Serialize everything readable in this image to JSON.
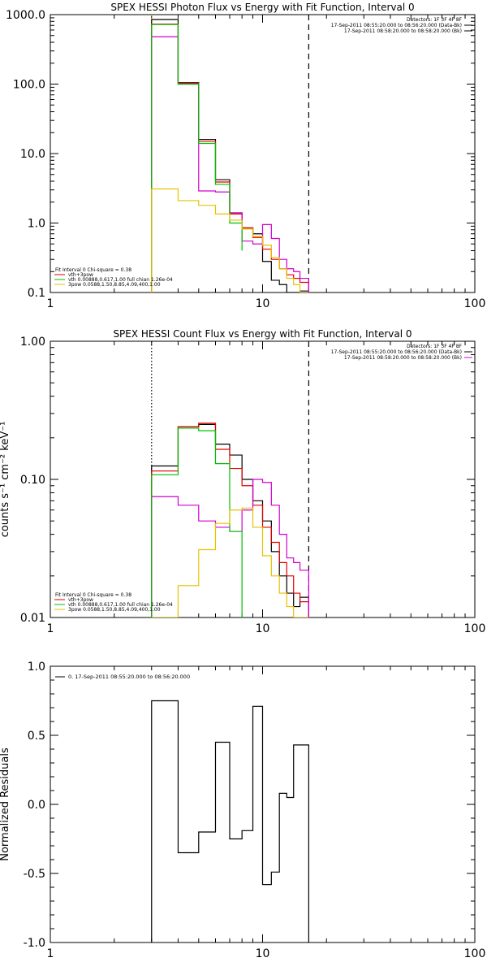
{
  "chart_data": [
    {
      "type": "line",
      "title": "SPEX HESSI Photon Flux vs Energy with Fit Function, Interval 0",
      "xscale": "log",
      "yscale": "log",
      "xlim": [
        1,
        100
      ],
      "ylim": [
        0.1,
        1000
      ],
      "xticks": [
        {
          "v": 1,
          "label": "1"
        },
        {
          "v": 10,
          "label": "10"
        },
        {
          "v": 100,
          "label": "100"
        }
      ],
      "yticks": [
        {
          "v": 0.1,
          "label": "0.1"
        },
        {
          "v": 1,
          "label": "1.0"
        },
        {
          "v": 10,
          "label": "10.0"
        },
        {
          "v": 100,
          "label": "100.0"
        },
        {
          "v": 1000,
          "label": "1000.0"
        }
      ],
      "ylabel": "",
      "vlines": [
        {
          "x": 3.0,
          "style": "dotted",
          "color": "#e6c200"
        },
        {
          "x": 16.5,
          "style": "dashed",
          "color": "#000000"
        }
      ],
      "legend_top": [
        {
          "text": "Detectors: 1F 3F 4F 8F",
          "color": "#000000"
        },
        {
          "text": "17-Sep-2011 08:55:20.000 to 08:56:20.000 (Data-Bk)",
          "color": "#000000"
        },
        {
          "text": "17-Sep-2011 08:58:20.000 to 08:58:20.000 (Bk)",
          "color": "#000000"
        }
      ],
      "legend_bottom": [
        {
          "text": "Fit Interval 0   Chi-square = 0.38",
          "color": "#000000"
        },
        {
          "text": "vth+3pow",
          "color": "#e00000"
        },
        {
          "text": "vth 0.00888,0.617,1.00  full chian 1.26e-04",
          "color": "#00c000"
        },
        {
          "text": "3pow 0.0588,1.50,8.85,4.09,400,1.00",
          "color": "#e6c200"
        }
      ],
      "series": [
        {
          "name": "Data-Bk",
          "color": "#000000",
          "edges": [
            3,
            4,
            5,
            6,
            7,
            8,
            9,
            10,
            11,
            12,
            13,
            14,
            15,
            16.5
          ],
          "values": [
            850,
            105,
            16,
            4.2,
            1.4,
            0.85,
            0.7,
            0.28,
            0.15,
            0.13,
            0.1,
            0.1,
            0.105
          ]
        },
        {
          "name": "vth+3pow",
          "color": "#e00000",
          "edges": [
            3,
            4,
            5,
            6,
            7,
            8,
            9,
            10,
            11,
            12,
            13,
            14,
            15,
            16.5
          ],
          "values": [
            730,
            103,
            15,
            3.9,
            1.35,
            0.85,
            0.62,
            0.42,
            0.3,
            0.22,
            0.18,
            0.16,
            0.14
          ]
        },
        {
          "name": "Bk",
          "color": "#d000d0",
          "edges": [
            3,
            4,
            5,
            6,
            7,
            8,
            9,
            10,
            11,
            12,
            13,
            14,
            15,
            16.5
          ],
          "values": [
            480,
            100,
            2.9,
            2.8,
            1.4,
            0.55,
            0.5,
            0.95,
            0.6,
            0.3,
            0.22,
            0.2,
            0.16
          ]
        },
        {
          "name": "vth",
          "color": "#00c000",
          "edges": [
            3,
            4,
            5,
            6,
            7,
            8
          ],
          "values": [
            720,
            100,
            14,
            3.6,
            1.0,
            0.4
          ]
        },
        {
          "name": "3pow",
          "color": "#e6c200",
          "edges": [
            3,
            4,
            5,
            6,
            7,
            8,
            9,
            10,
            11,
            12,
            13,
            14,
            15,
            16.5
          ],
          "values": [
            3.1,
            2.1,
            1.8,
            1.35,
            1.1,
            0.82,
            0.64,
            0.48,
            0.32,
            0.22,
            0.16,
            0.13,
            0.1
          ]
        }
      ]
    },
    {
      "type": "line",
      "title": "SPEX HESSI Count Flux vs Energy with Fit Function, Interval 0",
      "xscale": "log",
      "yscale": "log",
      "xlim": [
        1,
        100
      ],
      "ylim": [
        0.01,
        1.0
      ],
      "xticks": [
        {
          "v": 1,
          "label": "1"
        },
        {
          "v": 10,
          "label": "10"
        },
        {
          "v": 100,
          "label": "100"
        }
      ],
      "yticks": [
        {
          "v": 0.01,
          "label": "0.01"
        },
        {
          "v": 0.1,
          "label": "0.10"
        },
        {
          "v": 1,
          "label": "1.00"
        }
      ],
      "ylabel": "counts s⁻¹ cm⁻² keV⁻¹",
      "vlines": [
        {
          "x": 3.0,
          "style": "dotted",
          "color": "#000000"
        },
        {
          "x": 16.5,
          "style": "dashed",
          "color": "#000000"
        }
      ],
      "legend_top": [
        {
          "text": "Detectors: 1F 3F 4F 8F",
          "color": "#000000"
        },
        {
          "text": "17-Sep-2011 08:55:20.000 to 08:56:20.000 (Data-Bk)",
          "color": "#000000"
        },
        {
          "text": "17-Sep-2011 08:58:20.000 to 08:58:20.000 (Bk)",
          "color": "#000000"
        }
      ],
      "legend_bottom": [
        {
          "text": "Fit Interval 0   Chi-square = 0.38",
          "color": "#000000"
        },
        {
          "text": "vth+3pow",
          "color": "#e00000"
        },
        {
          "text": "vth 0.00888,0.617,1.00  full chian 1.26e-04",
          "color": "#00c000"
        },
        {
          "text": "3pow 0.0588,1.50,8.85,4.09,400,1.00",
          "color": "#e6c200"
        }
      ],
      "series": [
        {
          "name": "Data-Bk",
          "color": "#000000",
          "edges": [
            3,
            4,
            5,
            6,
            7,
            8,
            9,
            10,
            11,
            12,
            13,
            14,
            15,
            16.5
          ],
          "values": [
            0.125,
            0.24,
            0.25,
            0.18,
            0.15,
            0.1,
            0.07,
            0.05,
            0.03,
            0.02,
            0.015,
            0.012,
            0.014
          ]
        },
        {
          "name": "vth+3pow",
          "color": "#e00000",
          "edges": [
            3,
            4,
            5,
            6,
            7,
            8,
            9,
            10,
            11,
            12,
            13,
            14,
            15,
            16.5
          ],
          "values": [
            0.115,
            0.24,
            0.255,
            0.165,
            0.12,
            0.09,
            0.065,
            0.045,
            0.035,
            0.025,
            0.02,
            0.015,
            0.013
          ]
        },
        {
          "name": "Bk",
          "color": "#d000d0",
          "edges": [
            3,
            4,
            5,
            6,
            7,
            8,
            9,
            10,
            11,
            12,
            13,
            14,
            15,
            16.5
          ],
          "values": [
            0.075,
            0.065,
            0.05,
            0.045,
            0.042,
            0.06,
            0.1,
            0.095,
            0.065,
            0.04,
            0.027,
            0.025,
            0.022
          ]
        },
        {
          "name": "vth",
          "color": "#00c000",
          "edges": [
            3,
            4,
            5,
            6,
            7,
            8
          ],
          "values": [
            0.108,
            0.235,
            0.225,
            0.13,
            0.042,
            0.01
          ]
        },
        {
          "name": "3pow",
          "color": "#e6c200",
          "edges": [
            3,
            4,
            5,
            6,
            7,
            8,
            9,
            10,
            11,
            12,
            13,
            14,
            15,
            16.5
          ],
          "values": [
            0.01,
            0.017,
            0.031,
            0.048,
            0.06,
            0.062,
            0.045,
            0.028,
            0.02,
            0.015,
            0.012,
            0.01,
            0.009
          ]
        }
      ]
    },
    {
      "type": "line",
      "title": "",
      "xscale": "log",
      "yscale": "linear",
      "xlim": [
        1,
        100
      ],
      "ylim": [
        -1.0,
        1.0
      ],
      "xticks": [
        {
          "v": 1,
          "label": "1"
        },
        {
          "v": 10,
          "label": "10"
        },
        {
          "v": 100,
          "label": "100"
        }
      ],
      "yticks": [
        {
          "v": -1,
          "label": "-1.0"
        },
        {
          "v": -0.5,
          "label": "-0.5"
        },
        {
          "v": 0,
          "label": "0.0"
        },
        {
          "v": 0.5,
          "label": "0.5"
        },
        {
          "v": 1,
          "label": "1.0"
        }
      ],
      "ylabel": "Normalized Residuals",
      "vlines": [],
      "legend_top_left": [
        {
          "text": "0. 17-Sep-2011 08:55:20.000 to 08:56:20.000",
          "color": "#000000"
        }
      ],
      "series": [
        {
          "name": "0. 17-Sep-2011 08:55:20.000 to 08:56:20.000",
          "color": "#000000",
          "closed_bottom": true,
          "edges": [
            3,
            4,
            5,
            6,
            7,
            8,
            9,
            10,
            11,
            12,
            13,
            14,
            15,
            16.5
          ],
          "values": [
            0.75,
            -0.35,
            -0.2,
            0.45,
            -0.25,
            -0.19,
            0.71,
            -0.58,
            -0.49,
            0.08,
            0.05,
            0.43,
            0.43
          ]
        }
      ]
    }
  ]
}
